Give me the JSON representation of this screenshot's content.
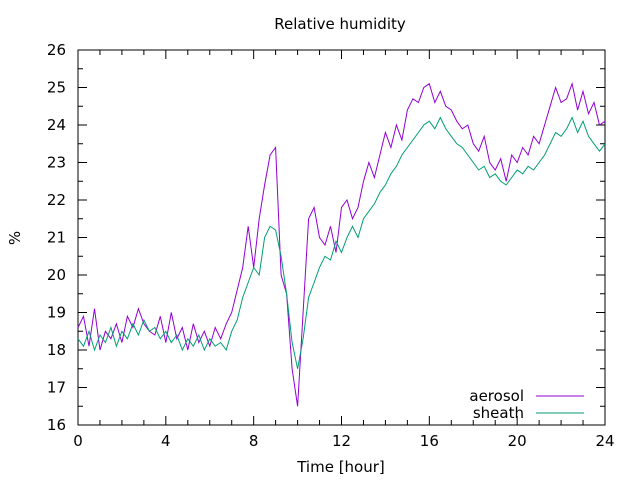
{
  "chart_data": {
    "type": "line",
    "title": "Relative humidity",
    "xlabel": "Time [hour]",
    "ylabel": "%",
    "xlim": [
      0,
      24
    ],
    "ylim": [
      16,
      26
    ],
    "xticks": [
      0,
      4,
      8,
      12,
      16,
      20,
      24
    ],
    "yticks": [
      16,
      17,
      18,
      19,
      20,
      21,
      22,
      23,
      24,
      25,
      26
    ],
    "grid": false,
    "legend_position": "bottom-right",
    "series": [
      {
        "name": "aerosol",
        "color": "#9400d3",
        "x": [
          0.0,
          0.25,
          0.5,
          0.75,
          1.0,
          1.25,
          1.5,
          1.75,
          2.0,
          2.25,
          2.5,
          2.75,
          3.0,
          3.25,
          3.5,
          3.75,
          4.0,
          4.25,
          4.5,
          4.75,
          5.0,
          5.25,
          5.5,
          5.75,
          6.0,
          6.25,
          6.5,
          6.75,
          7.0,
          7.25,
          7.5,
          7.75,
          8.0,
          8.25,
          8.5,
          8.75,
          9.0,
          9.25,
          9.5,
          9.75,
          10.0,
          10.25,
          10.5,
          10.75,
          11.0,
          11.25,
          11.5,
          11.75,
          12.0,
          12.25,
          12.5,
          12.75,
          13.0,
          13.25,
          13.5,
          13.75,
          14.0,
          14.25,
          14.5,
          14.75,
          15.0,
          15.25,
          15.5,
          15.75,
          16.0,
          16.25,
          16.5,
          16.75,
          17.0,
          17.25,
          17.5,
          17.75,
          18.0,
          18.25,
          18.5,
          18.75,
          19.0,
          19.25,
          19.5,
          19.75,
          20.0,
          20.25,
          20.5,
          20.75,
          21.0,
          21.25,
          21.5,
          21.75,
          22.0,
          22.25,
          22.5,
          22.75,
          23.0,
          23.25,
          23.5,
          23.75,
          24.0
        ],
        "y": [
          18.6,
          18.9,
          18.1,
          19.1,
          18.0,
          18.5,
          18.3,
          18.7,
          18.2,
          18.9,
          18.6,
          19.1,
          18.7,
          18.5,
          18.4,
          18.9,
          18.2,
          19.0,
          18.3,
          18.6,
          18.0,
          18.7,
          18.2,
          18.5,
          18.1,
          18.6,
          18.3,
          18.7,
          19.0,
          19.6,
          20.2,
          21.3,
          20.2,
          21.5,
          22.4,
          23.2,
          23.4,
          20.0,
          19.5,
          17.5,
          16.5,
          19.0,
          21.5,
          21.8,
          21.0,
          20.8,
          21.3,
          20.6,
          21.8,
          22.0,
          21.5,
          21.8,
          22.5,
          23.0,
          22.6,
          23.2,
          23.8,
          23.4,
          24.0,
          23.6,
          24.4,
          24.7,
          24.6,
          25.0,
          25.1,
          24.6,
          24.9,
          24.5,
          24.4,
          24.1,
          23.9,
          24.0,
          23.5,
          23.3,
          23.7,
          23.0,
          22.8,
          23.1,
          22.5,
          23.2,
          23.0,
          23.4,
          23.2,
          23.7,
          23.5,
          24.0,
          24.5,
          25.0,
          24.6,
          24.7,
          25.1,
          24.4,
          24.9,
          24.3,
          24.6,
          24.0,
          24.1
        ]
      },
      {
        "name": "sheath",
        "color": "#009e73",
        "x": [
          0.0,
          0.25,
          0.5,
          0.75,
          1.0,
          1.25,
          1.5,
          1.75,
          2.0,
          2.25,
          2.5,
          2.75,
          3.0,
          3.25,
          3.5,
          3.75,
          4.0,
          4.25,
          4.5,
          4.75,
          5.0,
          5.25,
          5.5,
          5.75,
          6.0,
          6.25,
          6.5,
          6.75,
          7.0,
          7.25,
          7.5,
          7.75,
          8.0,
          8.25,
          8.5,
          8.75,
          9.0,
          9.25,
          9.5,
          9.75,
          10.0,
          10.25,
          10.5,
          10.75,
          11.0,
          11.25,
          11.5,
          11.75,
          12.0,
          12.25,
          12.5,
          12.75,
          13.0,
          13.25,
          13.5,
          13.75,
          14.0,
          14.25,
          14.5,
          14.75,
          15.0,
          15.25,
          15.5,
          15.75,
          16.0,
          16.25,
          16.5,
          16.75,
          17.0,
          17.25,
          17.5,
          17.75,
          18.0,
          18.25,
          18.5,
          18.75,
          19.0,
          19.25,
          19.5,
          19.75,
          20.0,
          20.25,
          20.5,
          20.75,
          21.0,
          21.25,
          21.5,
          21.75,
          22.0,
          22.25,
          22.5,
          22.75,
          23.0,
          23.25,
          23.5,
          23.75,
          24.0
        ],
        "y": [
          18.3,
          18.1,
          18.5,
          18.0,
          18.4,
          18.2,
          18.6,
          18.1,
          18.5,
          18.3,
          18.7,
          18.4,
          18.8,
          18.5,
          18.6,
          18.3,
          18.5,
          18.2,
          18.4,
          18.0,
          18.3,
          18.1,
          18.4,
          18.0,
          18.3,
          18.1,
          18.2,
          18.0,
          18.5,
          18.8,
          19.4,
          19.8,
          20.2,
          20.0,
          21.0,
          21.3,
          21.2,
          20.5,
          19.5,
          18.2,
          17.5,
          18.3,
          19.4,
          19.8,
          20.2,
          20.5,
          20.4,
          20.9,
          20.6,
          21.0,
          21.3,
          21.0,
          21.5,
          21.7,
          21.9,
          22.2,
          22.4,
          22.7,
          22.9,
          23.2,
          23.4,
          23.6,
          23.8,
          24.0,
          24.1,
          23.9,
          24.2,
          23.9,
          23.7,
          23.5,
          23.4,
          23.2,
          23.0,
          22.8,
          22.9,
          22.6,
          22.7,
          22.5,
          22.4,
          22.6,
          22.8,
          22.7,
          22.9,
          22.8,
          23.0,
          23.2,
          23.5,
          23.8,
          23.7,
          23.9,
          24.2,
          23.8,
          24.1,
          23.7,
          23.5,
          23.3,
          23.5
        ]
      }
    ]
  }
}
